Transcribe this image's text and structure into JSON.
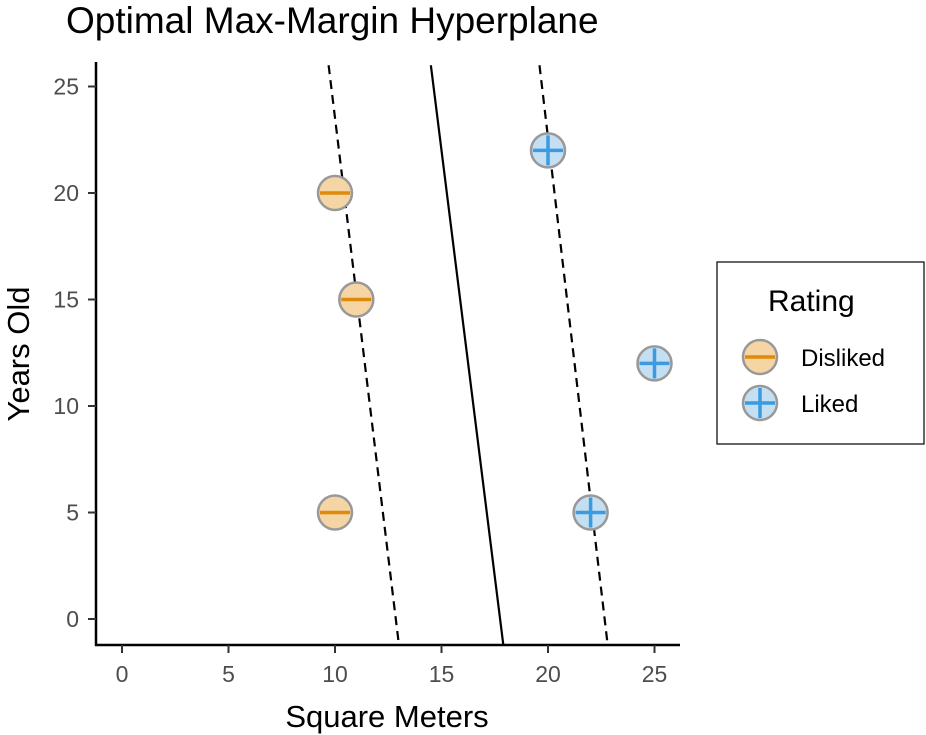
{
  "chart_data": {
    "type": "scatter",
    "title": "Optimal Max-Margin Hyperplane",
    "xlabel": "Square Meters",
    "ylabel": "Years Old",
    "xlim": [
      -1.2,
      26.3
    ],
    "ylim": [
      -1.2,
      26.2
    ],
    "xticks": [
      0,
      5,
      10,
      15,
      20,
      25
    ],
    "yticks": [
      0,
      5,
      10,
      15,
      20,
      25
    ],
    "grid": false,
    "series": [
      {
        "name": "Disliked",
        "marker": "minus",
        "fill": "#f5d5a3",
        "stroke": "#999999",
        "symbol_color": "#e08a0b",
        "points": [
          [
            10,
            20
          ],
          [
            11,
            15
          ],
          [
            10,
            5
          ]
        ]
      },
      {
        "name": "Liked",
        "marker": "plus",
        "fill": "#c4def2",
        "stroke": "#999999",
        "symbol_color": "#3a9be0",
        "points": [
          [
            20,
            22
          ],
          [
            25,
            12
          ],
          [
            22,
            5
          ]
        ]
      }
    ],
    "lines": [
      {
        "name": "hyperplane",
        "style": "solid",
        "from": [
          14.5,
          26
        ],
        "to": [
          17.9,
          -1.2
        ]
      },
      {
        "name": "margin-disliked",
        "style": "dashed",
        "from": [
          9.7,
          26
        ],
        "to": [
          13.0,
          -1.2
        ]
      },
      {
        "name": "margin-liked",
        "style": "dashed",
        "from": [
          19.6,
          26
        ],
        "to": [
          22.8,
          -1.2
        ]
      }
    ],
    "legend": {
      "title": "Rating",
      "position": "right",
      "entries": [
        "Disliked",
        "Liked"
      ]
    }
  }
}
